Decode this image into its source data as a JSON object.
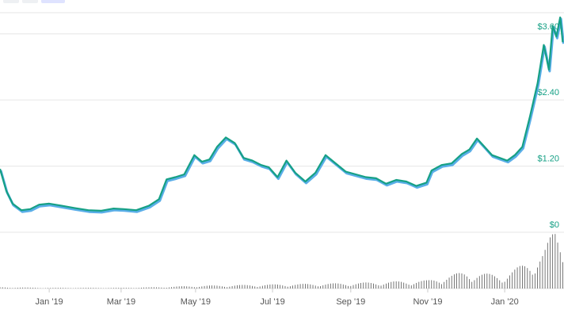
{
  "range_buttons": [
    {
      "label": "",
      "active": false
    },
    {
      "label": "",
      "active": false
    },
    {
      "label": "",
      "active": true
    }
  ],
  "colors": {
    "price_line": "#16a085",
    "price_shadow": "#5aaee8",
    "grid": "#e6e6e6",
    "tick_label": "#16a085",
    "axis_label": "#555555",
    "volume": "#555555"
  },
  "chart_data": {
    "type": "line",
    "x_axis_type": "date",
    "x_ticks": [
      "Jan '19",
      "Mar '19",
      "May '19",
      "Jul '19",
      "Sep '19",
      "Nov '19",
      "Jan '20"
    ],
    "y_ticks": [
      "$0",
      "$1.20",
      "$2.40",
      "$3.60"
    ],
    "ylim": [
      0,
      4.1
    ],
    "grid": true,
    "series": [
      {
        "values_x": [
          "2018-11-27",
          "2018-12-02",
          "2018-12-07",
          "2018-12-14",
          "2018-12-21",
          "2018-12-28",
          "2019-01-05",
          "2019-01-15",
          "2019-01-25",
          "2019-02-05",
          "2019-02-15",
          "2019-02-25",
          "2019-03-05",
          "2019-03-15",
          "2019-03-25",
          "2019-04-02",
          "2019-04-08",
          "2019-04-15",
          "2019-04-22",
          "2019-04-30",
          "2019-05-06",
          "2019-05-12",
          "2019-05-18",
          "2019-05-25",
          "2019-06-01",
          "2019-06-08",
          "2019-06-15",
          "2019-06-22",
          "2019-06-28",
          "2019-07-05",
          "2019-07-12",
          "2019-07-19",
          "2019-07-27",
          "2019-08-04",
          "2019-08-12",
          "2019-08-20",
          "2019-08-28",
          "2019-09-05",
          "2019-09-13",
          "2019-09-21",
          "2019-09-29",
          "2019-10-07",
          "2019-10-15",
          "2019-10-23",
          "2019-10-31",
          "2019-11-04",
          "2019-11-12",
          "2019-11-20",
          "2019-11-28",
          "2019-12-04",
          "2019-12-10",
          "2019-12-16",
          "2019-12-22",
          "2019-12-28",
          "2020-01-03",
          "2020-01-09",
          "2020-01-15",
          "2020-01-21",
          "2020-01-27",
          "2020-02-01",
          "2020-02-05",
          "2020-02-08",
          "2020-02-11",
          "2020-02-14",
          "2020-02-16"
        ],
        "values_y": [
          1.15,
          0.75,
          0.52,
          0.4,
          0.42,
          0.5,
          0.52,
          0.48,
          0.44,
          0.4,
          0.39,
          0.43,
          0.42,
          0.4,
          0.48,
          0.6,
          0.96,
          1.0,
          1.05,
          1.4,
          1.28,
          1.32,
          1.55,
          1.72,
          1.62,
          1.35,
          1.3,
          1.22,
          1.18,
          1.0,
          1.3,
          1.08,
          0.92,
          1.08,
          1.4,
          1.25,
          1.1,
          1.05,
          1.0,
          0.98,
          0.88,
          0.95,
          0.92,
          0.84,
          0.9,
          1.12,
          1.22,
          1.25,
          1.42,
          1.5,
          1.7,
          1.55,
          1.4,
          1.35,
          1.3,
          1.4,
          1.55,
          2.1,
          2.7,
          3.4,
          2.95,
          3.75,
          3.55,
          3.9,
          3.45
        ]
      }
    ],
    "volume": {
      "values_x": [
        "2018-11-27",
        "2019-01-01",
        "2019-02-01",
        "2019-03-01",
        "2019-04-01",
        "2019-05-01",
        "2019-06-01",
        "2019-07-01",
        "2019-08-01",
        "2019-09-01",
        "2019-10-01",
        "2019-11-01",
        "2019-11-15",
        "2019-12-01",
        "2019-12-15",
        "2020-01-01",
        "2020-01-15",
        "2020-02-01",
        "2020-02-10",
        "2020-02-16"
      ],
      "values_y": [
        0.02,
        0.01,
        0.01,
        0.01,
        0.02,
        0.04,
        0.05,
        0.06,
        0.07,
        0.08,
        0.1,
        0.12,
        0.18,
        0.25,
        0.22,
        0.2,
        0.35,
        0.55,
        0.9,
        0.8
      ]
    }
  }
}
